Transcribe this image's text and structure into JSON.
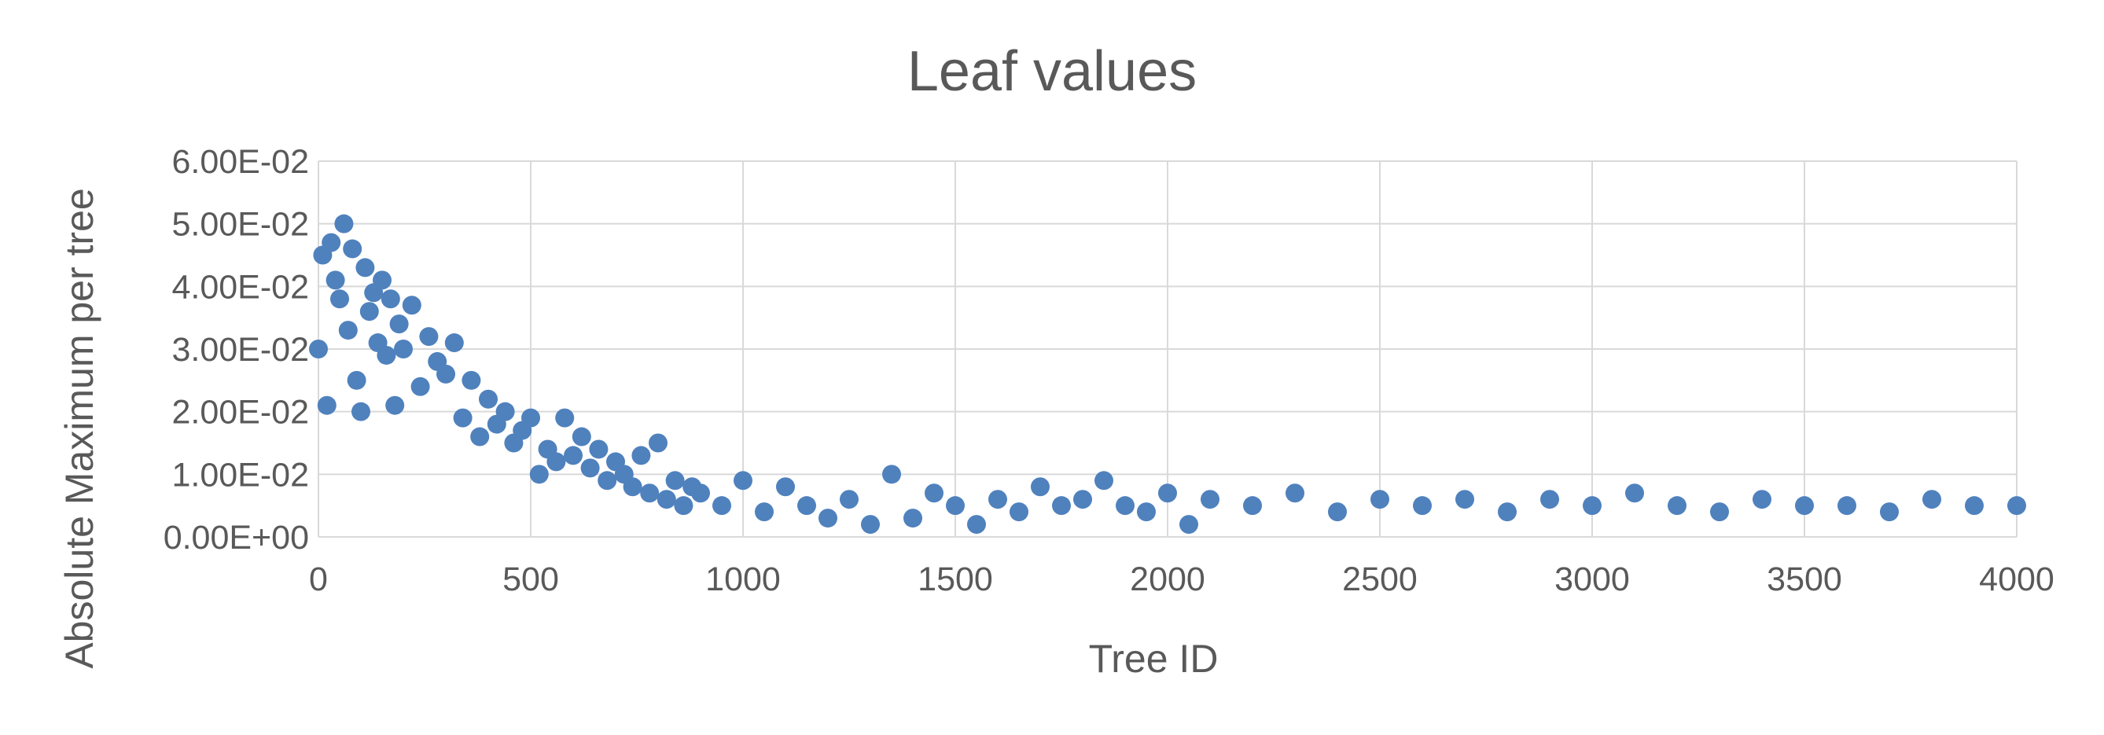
{
  "chart_data": {
    "type": "scatter",
    "title": "Leaf values",
    "xlabel": "Tree ID",
    "ylabel": "Absolute Maximum per tree",
    "xlim": [
      0,
      4000
    ],
    "ylim": [
      0,
      0.06
    ],
    "x_ticks": [
      0,
      500,
      1000,
      1500,
      2000,
      2500,
      3000,
      3500,
      4000
    ],
    "x_tick_labels": [
      "0",
      "500",
      "1000",
      "1500",
      "2000",
      "2500",
      "3000",
      "3500",
      "4000"
    ],
    "y_ticks": [
      0,
      0.01,
      0.02,
      0.03,
      0.04,
      0.05,
      0.06
    ],
    "y_tick_labels": [
      "0.00E+00",
      "1.00E-02",
      "2.00E-02",
      "3.00E-02",
      "4.00E-02",
      "5.00E-02",
      "6.00E-02"
    ],
    "grid": true,
    "marker_color": "#4f81bd",
    "series": [
      {
        "x": [
          0,
          10,
          20,
          30,
          40,
          50,
          60,
          70,
          80,
          90,
          100,
          110,
          120,
          130,
          140,
          150,
          160,
          170,
          180,
          190,
          200,
          220,
          240,
          260,
          280,
          300,
          320,
          340,
          360,
          380,
          400,
          420,
          440,
          460,
          480,
          500,
          520,
          540,
          560,
          580,
          600,
          620,
          640,
          660,
          680,
          700,
          720,
          740,
          760,
          780,
          800,
          820,
          840,
          860,
          880,
          900,
          950,
          1000,
          1050,
          1100,
          1150,
          1200,
          1250,
          1300,
          1350,
          1400,
          1450,
          1500,
          1550,
          1600,
          1650,
          1700,
          1750,
          1800,
          1850,
          1900,
          1950,
          2000,
          2050,
          2100,
          2200,
          2300,
          2400,
          2500,
          2600,
          2700,
          2800,
          2900,
          3000,
          3100,
          3200,
          3300,
          3400,
          3500,
          3600,
          3700,
          3800,
          3900,
          4000
        ],
        "y": [
          0.03,
          0.045,
          0.021,
          0.047,
          0.041,
          0.038,
          0.05,
          0.033,
          0.046,
          0.025,
          0.02,
          0.043,
          0.036,
          0.039,
          0.031,
          0.041,
          0.029,
          0.038,
          0.021,
          0.034,
          0.03,
          0.037,
          0.024,
          0.032,
          0.028,
          0.026,
          0.031,
          0.019,
          0.025,
          0.016,
          0.022,
          0.018,
          0.02,
          0.015,
          0.017,
          0.019,
          0.01,
          0.014,
          0.012,
          0.019,
          0.013,
          0.016,
          0.011,
          0.014,
          0.009,
          0.012,
          0.01,
          0.008,
          0.013,
          0.007,
          0.015,
          0.006,
          0.009,
          0.005,
          0.008,
          0.007,
          0.005,
          0.009,
          0.004,
          0.008,
          0.005,
          0.003,
          0.006,
          0.002,
          0.01,
          0.003,
          0.007,
          0.005,
          0.002,
          0.006,
          0.004,
          0.008,
          0.005,
          0.006,
          0.009,
          0.005,
          0.004,
          0.007,
          0.002,
          0.006,
          0.005,
          0.007,
          0.004,
          0.006,
          0.005,
          0.006,
          0.004,
          0.006,
          0.005,
          0.007,
          0.005,
          0.004,
          0.006,
          0.005,
          0.005,
          0.004,
          0.006,
          0.005,
          0.005
        ]
      }
    ]
  }
}
